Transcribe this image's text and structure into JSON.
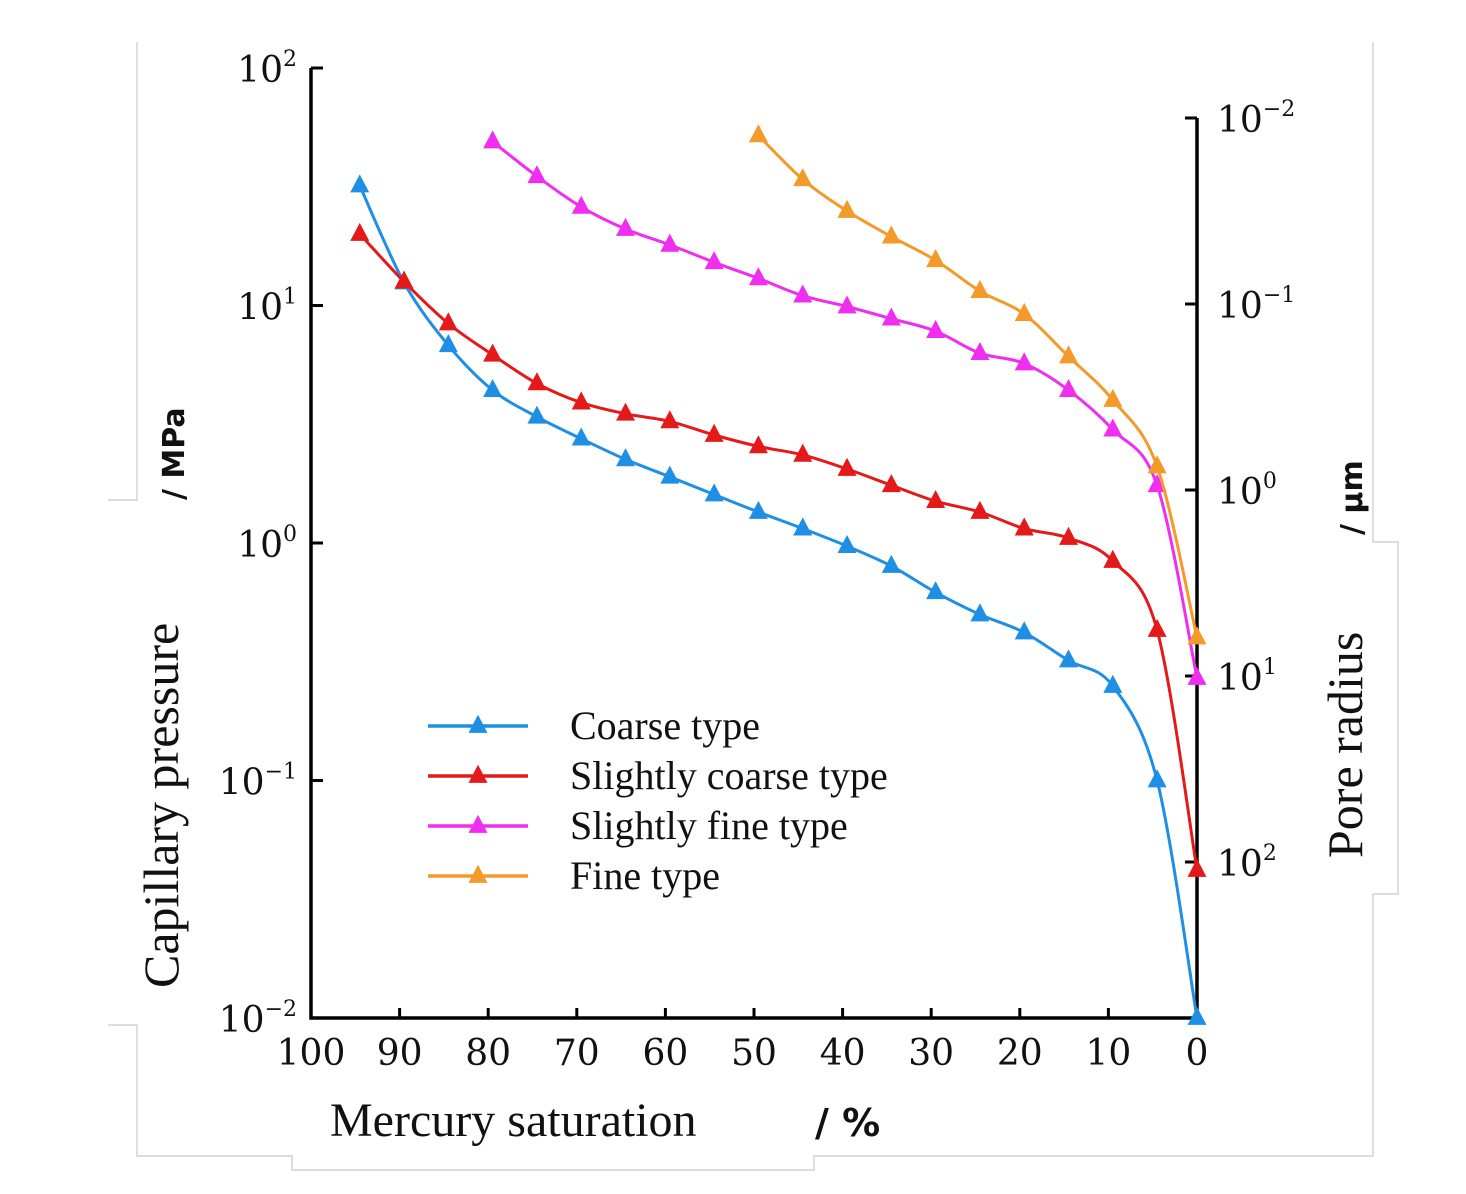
{
  "chart_data": {
    "type": "line",
    "x_axis": {
      "label": "Mercury saturation",
      "unit": "/ %",
      "range": [
        100,
        0
      ],
      "ticks": [
        100,
        90,
        80,
        70,
        60,
        50,
        40,
        30,
        20,
        10,
        0
      ],
      "tick_labels": [
        "100",
        "90",
        "80",
        "70",
        "60",
        "50",
        "40",
        "30",
        "20",
        "10",
        "0"
      ]
    },
    "y_axis_left": {
      "label": "Capillary pressure",
      "unit": "/ MPa",
      "scale": "log",
      "range": [
        0.01,
        100
      ],
      "ticks": [
        0.01,
        0.1,
        1,
        10,
        100
      ],
      "tick_base": "10",
      "tick_exponents": [
        "−2",
        "−1",
        "0",
        "1",
        "2"
      ]
    },
    "y_axis_right": {
      "label": "Pore radius",
      "unit": "/ μm",
      "scale": "log",
      "direction": "inverted",
      "ticks": [
        0.01,
        0.1,
        1,
        10,
        100
      ],
      "tick_base": "10",
      "tick_exponents": [
        "−2",
        "−1",
        "0",
        "1",
        "2"
      ]
    },
    "legend_position": "lower-left",
    "grid": false,
    "series": [
      {
        "name": "Coarse type",
        "color": "#1f8fe6",
        "marker": "triangle",
        "points": [
          [
            94.5,
            32
          ],
          [
            89.5,
            12.5
          ],
          [
            84.5,
            6.8
          ],
          [
            79.5,
            4.4
          ],
          [
            74.5,
            3.4
          ],
          [
            69.5,
            2.75
          ],
          [
            64.5,
            2.25
          ],
          [
            59.5,
            1.9
          ],
          [
            54.5,
            1.6
          ],
          [
            49.5,
            1.35
          ],
          [
            44.5,
            1.15
          ],
          [
            39.5,
            0.97
          ],
          [
            34.5,
            0.8
          ],
          [
            29.5,
            0.62
          ],
          [
            24.5,
            0.5
          ],
          [
            19.5,
            0.42
          ],
          [
            14.5,
            0.32
          ],
          [
            9.5,
            0.25
          ],
          [
            4.5,
            0.1
          ],
          [
            0,
            0.01
          ]
        ]
      },
      {
        "name": "Slightly coarse type",
        "color": "#e41a1a",
        "marker": "triangle",
        "points": [
          [
            94.5,
            20
          ],
          [
            89.5,
            12.6
          ],
          [
            84.5,
            8.4
          ],
          [
            79.5,
            6.2
          ],
          [
            74.5,
            4.7
          ],
          [
            69.5,
            3.9
          ],
          [
            64.5,
            3.5
          ],
          [
            59.5,
            3.25
          ],
          [
            54.5,
            2.85
          ],
          [
            49.5,
            2.55
          ],
          [
            44.5,
            2.35
          ],
          [
            39.5,
            2.05
          ],
          [
            34.5,
            1.75
          ],
          [
            29.5,
            1.5
          ],
          [
            24.5,
            1.35
          ],
          [
            19.5,
            1.15
          ],
          [
            14.5,
            1.05
          ],
          [
            9.5,
            0.84
          ],
          [
            4.5,
            0.43
          ],
          [
            0,
            0.042
          ]
        ]
      },
      {
        "name": "Slightly fine type",
        "color": "#ef2ef0",
        "marker": "triangle",
        "points": [
          [
            79.5,
            49
          ],
          [
            74.5,
            35
          ],
          [
            69.5,
            26
          ],
          [
            64.5,
            21
          ],
          [
            59.5,
            18
          ],
          [
            54.5,
            15.2
          ],
          [
            49.5,
            13
          ],
          [
            44.5,
            11
          ],
          [
            39.5,
            9.9
          ],
          [
            34.5,
            8.8
          ],
          [
            29.5,
            7.8
          ],
          [
            24.5,
            6.3
          ],
          [
            19.5,
            5.7
          ],
          [
            14.5,
            4.4
          ],
          [
            9.5,
            3.0
          ],
          [
            4.5,
            1.75
          ],
          [
            0,
            0.27
          ]
        ]
      },
      {
        "name": "Fine type",
        "color": "#f39a2b",
        "marker": "triangle",
        "points": [
          [
            49.5,
            52
          ],
          [
            44.5,
            34
          ],
          [
            39.5,
            25
          ],
          [
            34.5,
            19.5
          ],
          [
            29.5,
            15.5
          ],
          [
            24.5,
            11.5
          ],
          [
            19.5,
            9.2
          ],
          [
            14.5,
            6.1
          ],
          [
            9.5,
            4.0
          ],
          [
            4.5,
            2.1
          ],
          [
            0,
            0.4
          ]
        ]
      }
    ]
  }
}
